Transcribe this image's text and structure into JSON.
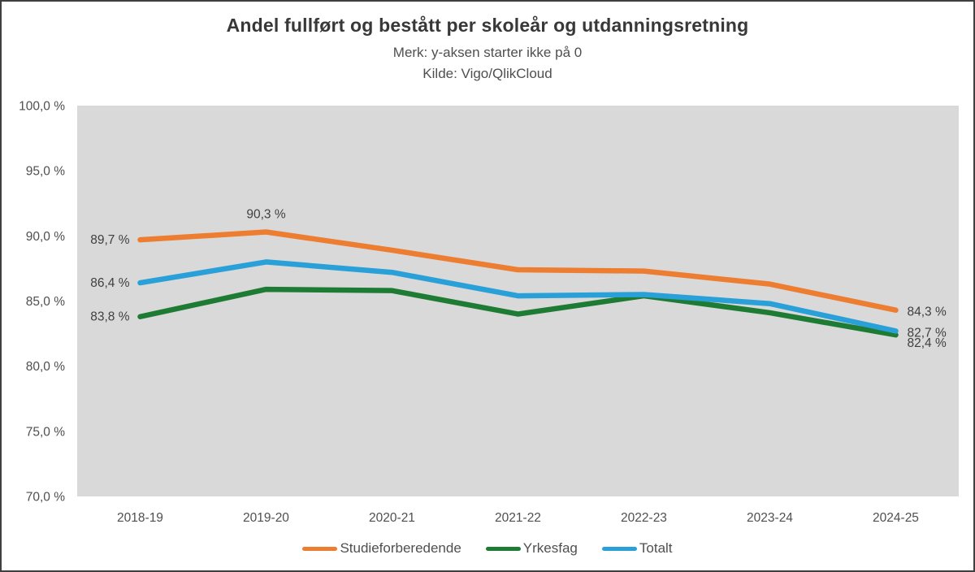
{
  "chart_data": {
    "type": "line",
    "title": "Andel fullført og bestått per skoleår og utdanningsretning",
    "subtitle_note": "Merk: y-aksen starter ikke på 0",
    "subtitle_source": "Kilde: Vigo/QlikCloud",
    "categories": [
      "2018-19",
      "2019-20",
      "2020-21",
      "2021-22",
      "2022-23",
      "2023-24",
      "2024-25"
    ],
    "series": [
      {
        "name": "Studieforberedende",
        "color": "#ED7D31",
        "values": [
          89.7,
          90.3,
          88.9,
          87.4,
          87.3,
          86.3,
          84.3
        ]
      },
      {
        "name": "Yrkesfag",
        "color": "#1E7B34",
        "values": [
          83.8,
          85.9,
          85.8,
          84.0,
          85.4,
          84.1,
          82.4
        ]
      },
      {
        "name": "Totalt",
        "color": "#29A0D8",
        "values": [
          86.4,
          88.0,
          87.2,
          85.4,
          85.5,
          84.8,
          82.7
        ]
      }
    ],
    "ylim": [
      70,
      100
    ],
    "ytick_step": 5,
    "y_tick_labels": [
      "100,0 %",
      "95,0 %",
      "90,0 %",
      "85,0 %",
      "80,0 %",
      "75,0 %",
      "70,0 %"
    ],
    "grid": false,
    "legend_position": "bottom",
    "plot_bg_color": "#D9D9D9",
    "tick_color": "#4F4F4F",
    "data_label_color": "#3F3F3F",
    "annotations": [
      {
        "series": 0,
        "point": 0,
        "text": "89,7 %",
        "placement": "left",
        "dy": 0
      },
      {
        "series": 0,
        "point": 1,
        "text": "90,3 %",
        "placement": "above",
        "dy": 0
      },
      {
        "series": 0,
        "point": 6,
        "text": "84,3 %",
        "placement": "right",
        "dy": 2
      },
      {
        "series": 2,
        "point": 0,
        "text": "86,4 %",
        "placement": "left",
        "dy": 0
      },
      {
        "series": 2,
        "point": 6,
        "text": "82,7 %",
        "placement": "right",
        "dy": 2
      },
      {
        "series": 1,
        "point": 0,
        "text": "83,8 %",
        "placement": "left",
        "dy": 0
      },
      {
        "series": 1,
        "point": 6,
        "text": "82,4 %",
        "placement": "right",
        "dy": 10
      }
    ]
  }
}
